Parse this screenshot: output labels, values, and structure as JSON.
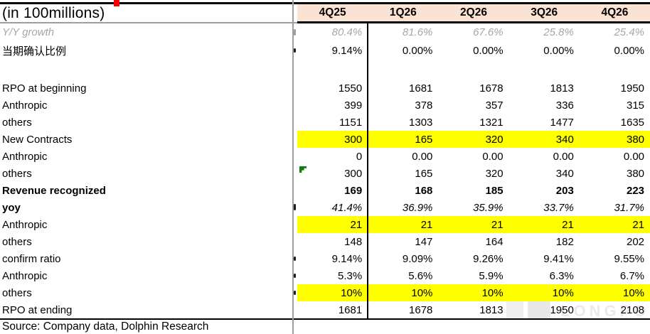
{
  "header": {
    "unit_label": "(in 100millions)",
    "quarters": [
      "4Q25",
      "1Q26",
      "2Q26",
      "3Q26",
      "4Q26"
    ]
  },
  "table": {
    "rows": [
      {
        "label": "Y/Y growth",
        "indent": 1,
        "label_style": "italic muted",
        "value_style": "italic muted",
        "values": [
          "80.4%",
          "81.6%",
          "67.6%",
          "25.8%",
          "25.4%"
        ]
      },
      {
        "label": "当期确认比例",
        "values": [
          "9.14%",
          "0.00%",
          "0.00%",
          "0.00%",
          "0.00%"
        ]
      },
      {
        "blank": true
      },
      {
        "label": "RPO at beginning",
        "values": [
          "1550",
          "1681",
          "1678",
          "1813",
          "1950"
        ]
      },
      {
        "label": "Anthropic",
        "indent": 1,
        "values": [
          "399",
          "378",
          "357",
          "336",
          "315"
        ]
      },
      {
        "label": "others",
        "indent": 1,
        "values": [
          "1151",
          "1303",
          "1321",
          "1477",
          "1635"
        ]
      },
      {
        "label": "New Contracts",
        "highlight": true,
        "values": [
          "300",
          "165",
          "320",
          "340",
          "380"
        ]
      },
      {
        "label": "Anthropic",
        "indent": 1,
        "values": [
          "0",
          "0.00",
          "0.00",
          "0.00",
          "0.00"
        ]
      },
      {
        "label": "others",
        "indent": 1,
        "flag": true,
        "values": [
          "300",
          "165",
          "320",
          "340",
          "380"
        ]
      },
      {
        "label": "Revenue recognized",
        "label_style": "bold",
        "value_style": "bold",
        "values": [
          "169",
          "168",
          "185",
          "203",
          "223"
        ]
      },
      {
        "label": "yoy",
        "label_style": "bold",
        "value_style": "italic",
        "values": [
          "41.4%",
          "36.9%",
          "35.9%",
          "33.7%",
          "31.7%"
        ]
      },
      {
        "label": "Anthropic",
        "indent": 1,
        "highlight": true,
        "values": [
          "21",
          "21",
          "21",
          "21",
          "21"
        ]
      },
      {
        "label": "others",
        "indent": 1,
        "values": [
          "148",
          "147",
          "164",
          "182",
          "202"
        ]
      },
      {
        "label": "confirm ratio",
        "values": [
          "9.14%",
          "9.09%",
          "9.26%",
          "9.41%",
          "9.55%"
        ]
      },
      {
        "label": "Anthropic",
        "indent": 1,
        "values": [
          "5.3%",
          "5.6%",
          "5.9%",
          "6.3%",
          "6.7%"
        ]
      },
      {
        "label": "others",
        "indent": 1,
        "highlight": true,
        "values": [
          "10%",
          "10%",
          "10%",
          "10%",
          "10%"
        ]
      },
      {
        "label": "RPO at ending",
        "values": [
          "1681",
          "1678",
          "1813",
          "1950",
          "2108"
        ]
      }
    ]
  },
  "footer": {
    "source": "Source: Company data, Dolphin Research"
  },
  "watermark": {
    "text": "LONGPORT"
  },
  "colors": {
    "header_bg": "#FBE3D4",
    "highlight_yellow": "#FFFF00",
    "muted_text": "#A6A6A6",
    "flag_green": "#0E7C0E",
    "accent_red": "#FF0000"
  }
}
